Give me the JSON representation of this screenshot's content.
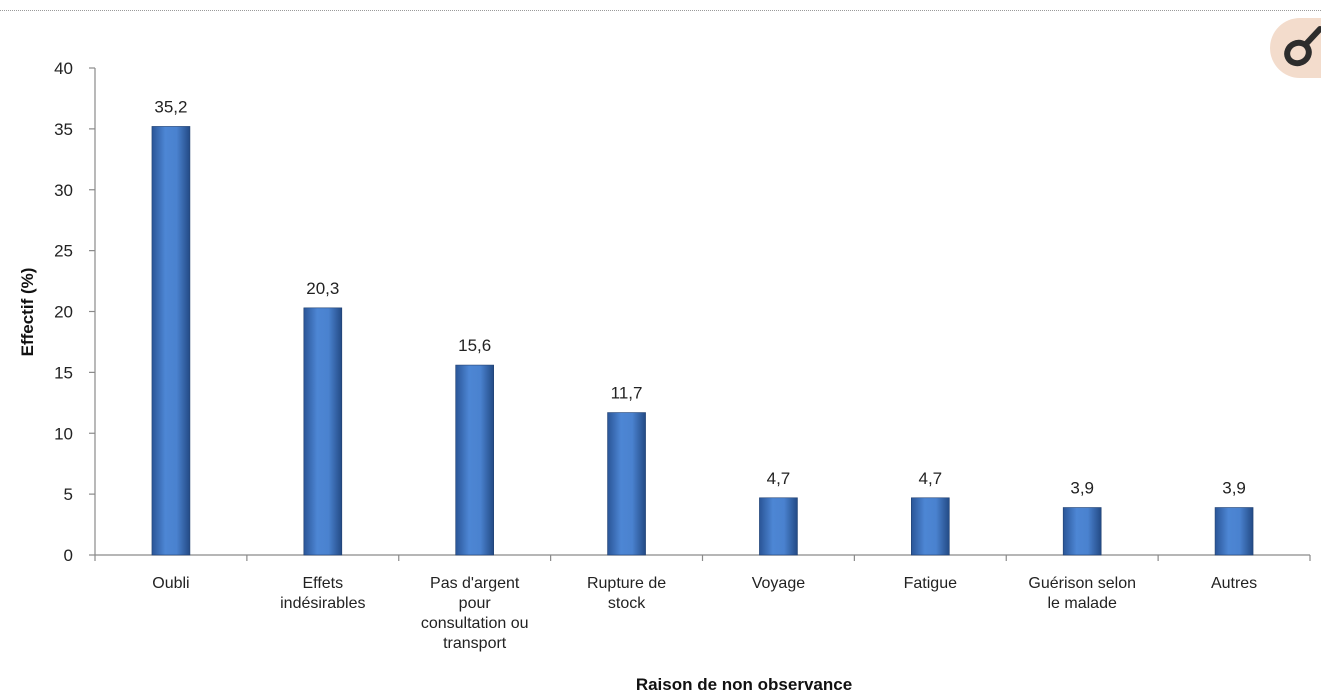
{
  "chart_data": {
    "type": "bar",
    "categories": [
      [
        "Oubli"
      ],
      [
        "Effets",
        "indésirables"
      ],
      [
        "Pas d'argent",
        "pour",
        "consultation ou",
        "transport"
      ],
      [
        "Rupture de",
        "stock"
      ],
      [
        "Voyage"
      ],
      [
        "Fatigue"
      ],
      [
        "Guérison selon",
        "le malade"
      ],
      [
        "Autres"
      ]
    ],
    "values": [
      35.2,
      20.3,
      15.6,
      11.7,
      4.7,
      4.7,
      3.9,
      3.9
    ],
    "value_labels": [
      "35,2",
      "20,3",
      "15,6",
      "11,7",
      "4,7",
      "4,7",
      "3,9",
      "3,9"
    ],
    "ylabel": "Effectif (%)",
    "xlabel": "Raison de non observance",
    "ylim": [
      0,
      40
    ],
    "yticks": [
      0,
      5,
      10,
      15,
      20,
      25,
      30,
      35,
      40
    ],
    "grid": false,
    "bar_color": "#3f74c2"
  },
  "corner_icon": {
    "name": "link-icon",
    "color": "#2d2d2d",
    "background": "#f3dccc"
  }
}
